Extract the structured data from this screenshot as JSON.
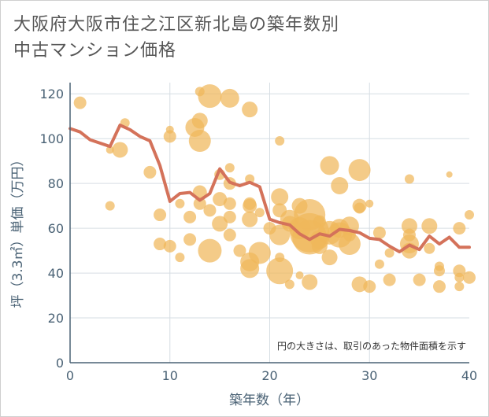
{
  "title": "大阪府大阪市住之江区新北島の築年数別中古マンション価格",
  "chart_data": {
    "type": "scatter",
    "title": "大阪府大阪市住之江区新北島の築年数別中古マンション価格",
    "xlabel": "築年数（年）",
    "ylabel": "坪（3.3㎡）単価（万円）",
    "xlim": [
      0,
      40
    ],
    "ylim": [
      0,
      125
    ],
    "x_ticks": [
      "0",
      "10",
      "20",
      "30",
      "40"
    ],
    "y_ticks": [
      "0",
      "20",
      "40",
      "60",
      "80",
      "100",
      "120"
    ],
    "grid": true,
    "annotation": "円の大きさは、取引のあった物件面積を示す",
    "colors": {
      "bubble": "#f0b75a",
      "line": "#d4725a",
      "axis": "#4a6275",
      "grid": "#d6dde3"
    },
    "bubbles": [
      {
        "x": 1,
        "y": 116,
        "s": 8
      },
      {
        "x": 4,
        "y": 95,
        "s": 5
      },
      {
        "x": 5,
        "y": 95,
        "s": 10
      },
      {
        "x": 5.5,
        "y": 107,
        "s": 6
      },
      {
        "x": 4,
        "y": 70,
        "s": 6
      },
      {
        "x": 8,
        "y": 85,
        "s": 8
      },
      {
        "x": 9,
        "y": 66,
        "s": 8
      },
      {
        "x": 9,
        "y": 53,
        "s": 8
      },
      {
        "x": 10,
        "y": 52,
        "s": 8
      },
      {
        "x": 10,
        "y": 101,
        "s": 8
      },
      {
        "x": 10,
        "y": 104,
        "s": 5
      },
      {
        "x": 11,
        "y": 71,
        "s": 6
      },
      {
        "x": 11,
        "y": 47,
        "s": 6
      },
      {
        "x": 12,
        "y": 65,
        "s": 8
      },
      {
        "x": 12,
        "y": 55,
        "s": 8
      },
      {
        "x": 12.5,
        "y": 105,
        "s": 12
      },
      {
        "x": 13,
        "y": 108,
        "s": 10
      },
      {
        "x": 13,
        "y": 99,
        "s": 14
      },
      {
        "x": 13,
        "y": 121,
        "s": 6
      },
      {
        "x": 13,
        "y": 71,
        "s": 8
      },
      {
        "x": 13,
        "y": 76,
        "s": 9
      },
      {
        "x": 14,
        "y": 119,
        "s": 15
      },
      {
        "x": 14,
        "y": 68,
        "s": 8
      },
      {
        "x": 14,
        "y": 50,
        "s": 15
      },
      {
        "x": 15,
        "y": 84,
        "s": 7
      },
      {
        "x": 15,
        "y": 73,
        "s": 9
      },
      {
        "x": 15,
        "y": 62,
        "s": 10
      },
      {
        "x": 16,
        "y": 118,
        "s": 12
      },
      {
        "x": 16,
        "y": 87,
        "s": 6
      },
      {
        "x": 16,
        "y": 80,
        "s": 8
      },
      {
        "x": 16,
        "y": 71,
        "s": 8
      },
      {
        "x": 16,
        "y": 65,
        "s": 8
      },
      {
        "x": 16,
        "y": 57,
        "s": 8
      },
      {
        "x": 17,
        "y": 50,
        "s": 8
      },
      {
        "x": 18,
        "y": 113,
        "s": 10
      },
      {
        "x": 18,
        "y": 82,
        "s": 6
      },
      {
        "x": 18,
        "y": 70,
        "s": 9
      },
      {
        "x": 18,
        "y": 64,
        "s": 10
      },
      {
        "x": 18,
        "y": 45,
        "s": 12
      },
      {
        "x": 18,
        "y": 42,
        "s": 12
      },
      {
        "x": 18,
        "y": 71,
        "s": 8
      },
      {
        "x": 19,
        "y": 67,
        "s": 6
      },
      {
        "x": 19,
        "y": 49,
        "s": 14
      },
      {
        "x": 20,
        "y": 60,
        "s": 8
      },
      {
        "x": 21,
        "y": 99,
        "s": 6
      },
      {
        "x": 21,
        "y": 74,
        "s": 11
      },
      {
        "x": 21,
        "y": 68,
        "s": 9
      },
      {
        "x": 21,
        "y": 57,
        "s": 13
      },
      {
        "x": 21,
        "y": 47,
        "s": 6
      },
      {
        "x": 21,
        "y": 41,
        "s": 17
      },
      {
        "x": 22,
        "y": 64,
        "s": 12
      },
      {
        "x": 22,
        "y": 62,
        "s": 10
      },
      {
        "x": 22,
        "y": 35,
        "s": 6
      },
      {
        "x": 23,
        "y": 60,
        "s": 14
      },
      {
        "x": 23,
        "y": 70,
        "s": 10
      },
      {
        "x": 23,
        "y": 39,
        "s": 5
      },
      {
        "x": 24,
        "y": 66,
        "s": 20
      },
      {
        "x": 24,
        "y": 58,
        "s": 25
      },
      {
        "x": 24,
        "y": 56,
        "s": 22
      },
      {
        "x": 24,
        "y": 36,
        "s": 10
      },
      {
        "x": 25,
        "y": 63,
        "s": 8
      },
      {
        "x": 25,
        "y": 55,
        "s": 12
      },
      {
        "x": 25,
        "y": 52,
        "s": 10
      },
      {
        "x": 26,
        "y": 88,
        "s": 12
      },
      {
        "x": 26,
        "y": 58,
        "s": 15
      },
      {
        "x": 26,
        "y": 47,
        "s": 10
      },
      {
        "x": 27,
        "y": 79,
        "s": 11
      },
      {
        "x": 27,
        "y": 60,
        "s": 12
      },
      {
        "x": 27,
        "y": 57,
        "s": 16
      },
      {
        "x": 28,
        "y": 61,
        "s": 12
      },
      {
        "x": 28,
        "y": 53,
        "s": 14
      },
      {
        "x": 28,
        "y": 57,
        "s": 8
      },
      {
        "x": 29,
        "y": 86,
        "s": 14
      },
      {
        "x": 29,
        "y": 70,
        "s": 9
      },
      {
        "x": 29,
        "y": 69,
        "s": 7
      },
      {
        "x": 29,
        "y": 35,
        "s": 10
      },
      {
        "x": 30,
        "y": 71,
        "s": 5
      },
      {
        "x": 30,
        "y": 34,
        "s": 8
      },
      {
        "x": 31,
        "y": 58,
        "s": 8
      },
      {
        "x": 31,
        "y": 44,
        "s": 6
      },
      {
        "x": 32,
        "y": 49,
        "s": 6
      },
      {
        "x": 32,
        "y": 37,
        "s": 8
      },
      {
        "x": 34,
        "y": 82,
        "s": 6
      },
      {
        "x": 34,
        "y": 61,
        "s": 10
      },
      {
        "x": 34,
        "y": 57,
        "s": 8
      },
      {
        "x": 34,
        "y": 53,
        "s": 12
      },
      {
        "x": 34,
        "y": 50,
        "s": 10
      },
      {
        "x": 35,
        "y": 37,
        "s": 8
      },
      {
        "x": 36,
        "y": 61,
        "s": 10
      },
      {
        "x": 36,
        "y": 51,
        "s": 7
      },
      {
        "x": 37,
        "y": 43,
        "s": 6
      },
      {
        "x": 37,
        "y": 41,
        "s": 7
      },
      {
        "x": 37,
        "y": 34,
        "s": 8
      },
      {
        "x": 38,
        "y": 84,
        "s": 4
      },
      {
        "x": 39,
        "y": 60,
        "s": 8
      },
      {
        "x": 39,
        "y": 41,
        "s": 8
      },
      {
        "x": 39,
        "y": 38,
        "s": 6
      },
      {
        "x": 39,
        "y": 34,
        "s": 6
      },
      {
        "x": 40,
        "y": 66,
        "s": 6
      },
      {
        "x": 40,
        "y": 38,
        "s": 8
      }
    ],
    "trend_line": {
      "x": [
        0,
        1,
        2,
        3,
        4,
        5,
        6,
        7,
        8,
        9,
        10,
        11,
        12,
        13,
        14,
        15,
        16,
        17,
        18,
        19,
        20,
        21,
        22,
        23,
        24,
        25,
        26,
        27,
        28,
        29,
        30,
        31,
        32,
        33,
        34,
        35,
        36,
        37,
        38,
        39,
        40
      ],
      "y": [
        104.5,
        103,
        99.5,
        98,
        96.5,
        106,
        104,
        101,
        99,
        88,
        72,
        75.5,
        76,
        72.5,
        75.5,
        86.5,
        80.5,
        79,
        80.5,
        78.5,
        64,
        62.5,
        61.5,
        57.5,
        55,
        57.5,
        56.5,
        59.5,
        59,
        58,
        55.5,
        55,
        52,
        49.5,
        52.5,
        50.5,
        56.5,
        53,
        56,
        51.5,
        51.5
      ]
    }
  }
}
